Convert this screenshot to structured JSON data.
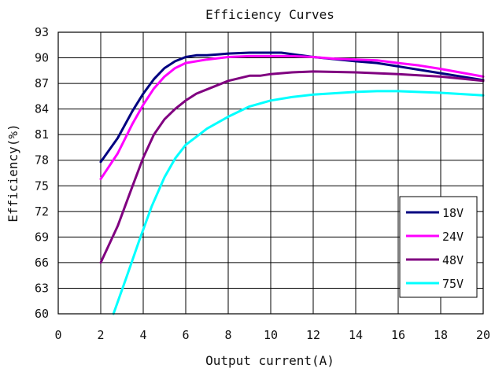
{
  "chart_data": {
    "type": "line",
    "title": "Efficiency Curves",
    "xlabel": "Output current(A)",
    "ylabel": "Efficiency(%)",
    "xlim": [
      0,
      20
    ],
    "ylim": [
      60,
      93
    ],
    "xticks": [
      0,
      2,
      4,
      6,
      8,
      10,
      12,
      14,
      16,
      18,
      20
    ],
    "yticks": [
      60,
      63,
      66,
      69,
      72,
      75,
      78,
      81,
      84,
      87,
      90,
      93
    ],
    "grid": true,
    "legend_position": "bottom-right",
    "series": [
      {
        "name": "18V",
        "color": "#000080",
        "x": [
          2,
          2.8,
          3.5,
          4,
          4.5,
          5,
          5.5,
          6,
          6.5,
          7,
          7.5,
          8,
          9,
          10,
          10.5,
          12,
          14,
          15,
          16,
          18,
          20
        ],
        "y": [
          77.8,
          80.6,
          83.8,
          85.8,
          87.5,
          88.8,
          89.6,
          90.1,
          90.3,
          90.3,
          90.4,
          90.5,
          90.6,
          90.6,
          90.6,
          90.1,
          89.6,
          89.4,
          89.0,
          88.2,
          87.4
        ]
      },
      {
        "name": "24V",
        "color": "#ff00ff",
        "x": [
          2,
          2.8,
          3.5,
          4,
          4.5,
          5,
          5.5,
          6,
          7,
          8,
          9,
          10,
          11,
          12,
          13,
          14,
          15,
          16,
          17,
          18,
          20
        ],
        "y": [
          75.8,
          78.8,
          82.3,
          84.5,
          86.4,
          87.8,
          88.8,
          89.4,
          89.8,
          90.1,
          90.2,
          90.2,
          90.2,
          90.1,
          89.9,
          89.8,
          89.7,
          89.4,
          89.1,
          88.7,
          87.8
        ]
      },
      {
        "name": "48V",
        "color": "#800080",
        "x": [
          2,
          2.8,
          3.5,
          4,
          4.5,
          5,
          5.5,
          6,
          6.5,
          7,
          8,
          9,
          9.5,
          10,
          11,
          12,
          14,
          16,
          18,
          20
        ],
        "y": [
          66.0,
          70.3,
          75.0,
          78.3,
          81.0,
          82.8,
          84.0,
          85.0,
          85.8,
          86.3,
          87.3,
          87.9,
          87.9,
          88.1,
          88.3,
          88.4,
          88.3,
          88.1,
          87.8,
          87.3
        ]
      },
      {
        "name": "75V",
        "color": "#00ffff",
        "x": [
          2.6,
          3.2,
          3.8,
          4.4,
          5,
          5.5,
          6,
          7,
          8,
          9,
          10,
          11,
          12,
          14,
          15,
          16,
          18,
          20
        ],
        "y": [
          60.0,
          64.2,
          68.5,
          72.6,
          76.0,
          78.2,
          79.8,
          81.7,
          83.1,
          84.3,
          85.0,
          85.4,
          85.7,
          86.0,
          86.1,
          86.1,
          85.9,
          85.6
        ]
      }
    ]
  }
}
